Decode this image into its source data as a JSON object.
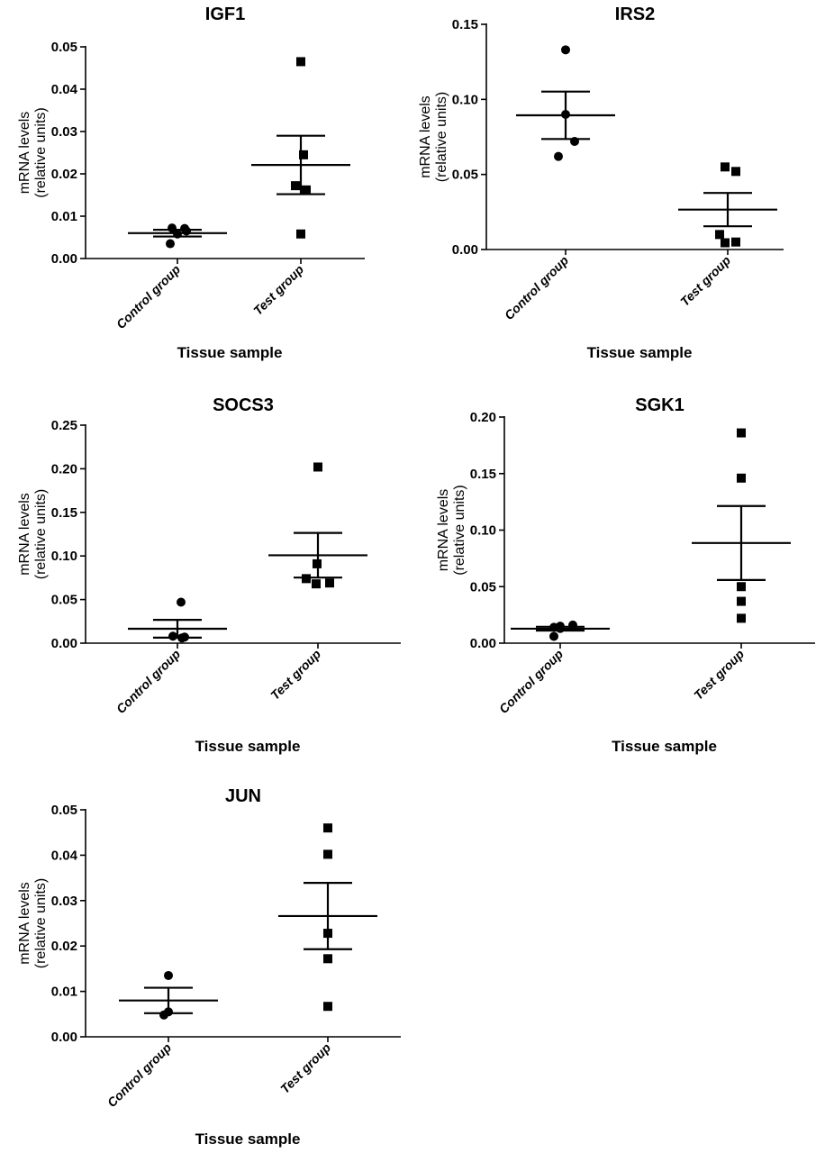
{
  "chart_data": [
    {
      "type": "scatter",
      "title": "IGF1",
      "ylabel": [
        "mRNA levels",
        "(relative units)"
      ],
      "xlabel": "Tissue sample",
      "ylim": [
        0,
        0.05
      ],
      "yticks": [
        "0.00",
        "0.01",
        "0.02",
        "0.03",
        "0.04",
        "0.05"
      ],
      "categories": [
        "Control group",
        "Test group"
      ],
      "series": [
        {
          "marker": "circle",
          "points": [
            0.0035,
            0.0058,
            0.0065,
            0.0072,
            0.0071
          ],
          "mean": 0.006,
          "sem": 0.0008
        },
        {
          "marker": "square",
          "points": [
            0.0465,
            0.0245,
            0.0172,
            0.0162,
            0.0058
          ],
          "mean": 0.0221,
          "sem": 0.0069
        }
      ]
    },
    {
      "type": "scatter",
      "title": "IRS2",
      "ylabel": [
        "mRNA levels",
        "(relative units)"
      ],
      "xlabel": "Tissue sample",
      "ylim": [
        0,
        0.15
      ],
      "yticks": [
        "0.00",
        "0.05",
        "0.10",
        "0.15"
      ],
      "categories": [
        "Control group",
        "Test group"
      ],
      "series": [
        {
          "marker": "circle",
          "points": [
            0.133,
            0.09,
            0.072,
            0.062
          ],
          "mean": 0.0894,
          "sem": 0.0158
        },
        {
          "marker": "square",
          "points": [
            0.055,
            0.052,
            0.01,
            0.005,
            0.0045
          ],
          "mean": 0.0266,
          "sem": 0.0111
        }
      ]
    },
    {
      "type": "scatter",
      "title": "SOCS3",
      "ylabel": [
        "mRNA levels",
        "(relative units)"
      ],
      "xlabel": "Tissue sample",
      "ylim": [
        0,
        0.25
      ],
      "yticks": [
        "0.00",
        "0.05",
        "0.10",
        "0.15",
        "0.20",
        "0.25"
      ],
      "categories": [
        "Control group",
        "Test group"
      ],
      "series": [
        {
          "marker": "circle",
          "points": [
            0.047,
            0.008,
            0.006,
            0.007
          ],
          "mean": 0.0165,
          "sem": 0.0102
        },
        {
          "marker": "square",
          "points": [
            0.202,
            0.091,
            0.074,
            0.068,
            0.069
          ],
          "mean": 0.1008,
          "sem": 0.0256
        }
      ]
    },
    {
      "type": "scatter",
      "title": "SGK1",
      "ylabel": [
        "mRNA levels",
        "(relative units)"
      ],
      "xlabel": "Tissue sample",
      "ylim": [
        0,
        0.2
      ],
      "yticks": [
        "0.00",
        "0.05",
        "0.10",
        "0.15",
        "0.20"
      ],
      "categories": [
        "Control group",
        "Test group"
      ],
      "series": [
        {
          "marker": "circle",
          "points": [
            0.015,
            0.014,
            0.013,
            0.016,
            0.006
          ],
          "mean": 0.0128,
          "sem": 0.0017
        },
        {
          "marker": "square",
          "points": [
            0.186,
            0.146,
            0.05,
            0.037,
            0.022
          ],
          "mean": 0.0886,
          "sem": 0.0327
        }
      ]
    },
    {
      "type": "scatter",
      "title": "JUN",
      "ylabel": [
        "mRNA levels",
        "(relative units)"
      ],
      "xlabel": "Tissue sample",
      "ylim": [
        0,
        0.05
      ],
      "yticks": [
        "0.00",
        "0.01",
        "0.02",
        "0.03",
        "0.04",
        "0.05"
      ],
      "categories": [
        "Control group",
        "Test group"
      ],
      "series": [
        {
          "marker": "circle",
          "points": [
            0.0135,
            0.0055,
            0.0048
          ],
          "mean": 0.008,
          "sem": 0.0028
        },
        {
          "marker": "square",
          "points": [
            0.046,
            0.0402,
            0.0228,
            0.0172,
            0.0067
          ],
          "mean": 0.0266,
          "sem": 0.0073
        }
      ]
    }
  ]
}
